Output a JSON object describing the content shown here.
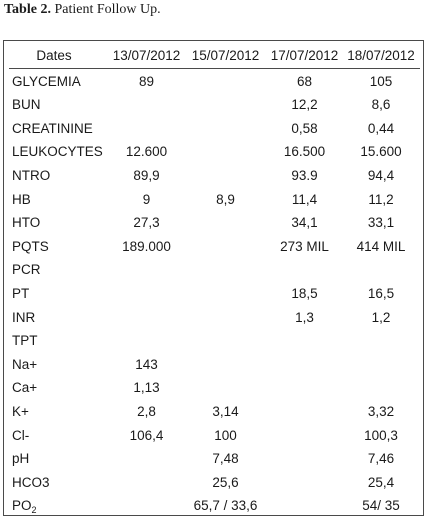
{
  "caption": {
    "prefix": "Table 2.",
    "text": "Patient Follow Up."
  },
  "table": {
    "headers": [
      "Dates",
      "13/07/2012",
      "15/07/2012",
      "17/07/2012",
      "18/07/2012"
    ],
    "rows": [
      {
        "label": "GLYCEMIA",
        "values": [
          "89",
          "",
          "68",
          "105"
        ]
      },
      {
        "label": "BUN",
        "values": [
          "",
          "",
          "12,2",
          "8,6"
        ]
      },
      {
        "label": "CREATININE",
        "values": [
          "",
          "",
          "0,58",
          "0,44"
        ]
      },
      {
        "label": "LEUKOCYTES",
        "values": [
          "12.600",
          "",
          "16.500",
          "15.600"
        ]
      },
      {
        "label": "NTRO",
        "values": [
          "89,9",
          "",
          "93.9",
          "94,4"
        ]
      },
      {
        "label": "HB",
        "values": [
          "9",
          "8,9",
          "11,4",
          "11,2"
        ]
      },
      {
        "label": "HTO",
        "values": [
          "27,3",
          "",
          "34,1",
          "33,1"
        ]
      },
      {
        "label": "PQTS",
        "values": [
          "189.000",
          "",
          "273 MIL",
          "414 MIL"
        ]
      },
      {
        "label": "PCR",
        "values": [
          "",
          "",
          "",
          ""
        ]
      },
      {
        "label": "PT",
        "values": [
          "",
          "",
          "18,5",
          "16,5"
        ]
      },
      {
        "label": "INR",
        "values": [
          "",
          "",
          "1,3",
          "1,2"
        ]
      },
      {
        "label": "TPT",
        "values": [
          "",
          "",
          "",
          ""
        ]
      },
      {
        "label": "Na+",
        "values": [
          "143",
          "",
          "",
          ""
        ]
      },
      {
        "label": "Ca+",
        "values": [
          "1,13",
          "",
          "",
          ""
        ]
      },
      {
        "label": "K+",
        "values": [
          "2,8",
          "3,14",
          "",
          "3,32"
        ]
      },
      {
        "label": "Cl-",
        "values": [
          "106,4",
          "100",
          "",
          "100,3"
        ]
      },
      {
        "label": "pH",
        "values": [
          "",
          "7,48",
          "",
          "7,46"
        ]
      },
      {
        "label": "HCO3",
        "values": [
          "",
          "25,6",
          "",
          "25,4"
        ]
      },
      {
        "label": "PO",
        "label_sub": "2",
        "values": [
          "",
          "65,7 / 33,6",
          "",
          "54/ 35"
        ]
      }
    ]
  }
}
